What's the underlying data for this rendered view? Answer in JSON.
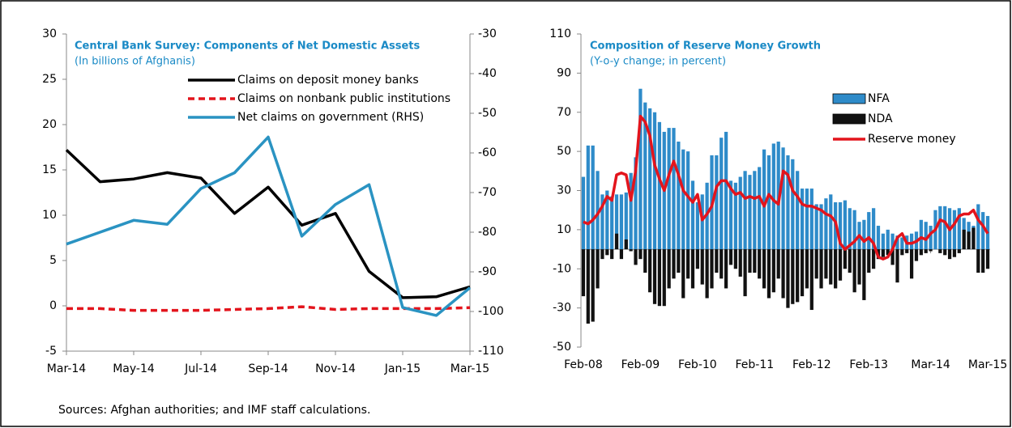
{
  "chart_data": [
    {
      "type": "line",
      "title": "Central Bank Survey: Components of Net Domestic Assets",
      "subtitle": "(In billions of Afghanis)",
      "categories": [
        "Mar-14",
        null,
        "May-14",
        null,
        "Jul-14",
        null,
        "Sep-14",
        null,
        "Nov-14",
        null,
        "Jan-15",
        null,
        "Mar-15"
      ],
      "series": [
        {
          "name": "Claims on deposit money banks",
          "color": "#000000",
          "style": "solid",
          "values": [
            17.2,
            13.7,
            14.0,
            14.7,
            14.1,
            10.2,
            13.1,
            8.9,
            10.2,
            3.8,
            0.9,
            1.0,
            2.1
          ]
        },
        {
          "name": "Claims on nonbank public institutions",
          "color": "#e3141c",
          "style": "dashed",
          "values": [
            -0.3,
            -0.3,
            -0.5,
            -0.5,
            -0.5,
            -0.4,
            -0.3,
            -0.1,
            -0.4,
            -0.3,
            -0.3,
            -0.3,
            -0.2
          ]
        },
        {
          "name": "Net claims on government (RHS)",
          "color": "#2a93c2",
          "style": "solid",
          "axis": "y2",
          "values": [
            -83,
            -80,
            -77,
            -78,
            -69,
            -65,
            -56,
            -81,
            -73,
            -68,
            -99,
            -101,
            -94
          ]
        }
      ],
      "ylim": [
        -5,
        30
      ],
      "yticks": [
        -5,
        0,
        5,
        10,
        15,
        20,
        25,
        30
      ],
      "y2lim": [
        -110,
        -30
      ],
      "y2ticks": [
        -110,
        -100,
        -90,
        -80,
        -70,
        -60,
        -50,
        -40,
        -30
      ],
      "legend": "top"
    },
    {
      "type": "bar",
      "title": "Composition of Reserve Money  Growth",
      "subtitle": "(Y-o-y  change; in percent)",
      "categories": [
        "Feb-08",
        null,
        null,
        null,
        null,
        null,
        null,
        null,
        null,
        null,
        null,
        null,
        "Feb-09",
        null,
        null,
        null,
        null,
        null,
        null,
        null,
        null,
        null,
        null,
        null,
        "Feb-10",
        null,
        null,
        null,
        null,
        null,
        null,
        null,
        null,
        null,
        null,
        null,
        "Feb-11",
        null,
        null,
        null,
        null,
        null,
        null,
        null,
        null,
        null,
        null,
        null,
        "Feb-12",
        null,
        null,
        null,
        null,
        null,
        null,
        null,
        null,
        null,
        null,
        null,
        "Feb-13",
        null,
        null,
        null,
        null,
        null,
        null,
        null,
        null,
        null,
        null,
        null,
        null,
        "Mar-14",
        null,
        null,
        null,
        null,
        null,
        null,
        null,
        null,
        null,
        null,
        null,
        "Mar-15"
      ],
      "series": [
        {
          "name": "NFA",
          "color": "#2e8bc9",
          "type": "bar",
          "values": [
            37,
            53,
            53,
            40,
            28,
            30,
            27,
            28,
            28,
            29,
            39,
            47,
            82,
            75,
            72,
            70,
            65,
            60,
            62,
            62,
            55,
            51,
            50,
            35,
            24,
            28,
            34,
            48,
            48,
            57,
            60,
            35,
            34,
            37,
            40,
            38,
            40,
            42,
            51,
            48,
            54,
            55,
            52,
            48,
            46,
            40,
            31,
            31,
            31,
            23,
            23,
            26,
            28,
            24,
            24,
            25,
            21,
            20,
            14,
            15,
            19,
            21,
            12,
            8,
            10,
            8,
            7,
            6,
            7,
            8,
            9,
            15,
            14,
            12,
            20,
            22,
            22,
            21,
            20,
            21,
            16,
            14,
            12,
            23,
            19,
            17
          ]
        },
        {
          "name": "NDA",
          "color": "#111111",
          "type": "bar",
          "values": [
            -24,
            -38,
            -37,
            -20,
            -5,
            -3,
            -5,
            8,
            -5,
            5,
            -1,
            -8,
            -5,
            -12,
            -22,
            -28,
            -29,
            -29,
            -20,
            -15,
            -12,
            -25,
            -15,
            -20,
            -10,
            -18,
            -25,
            -20,
            -12,
            -15,
            -20,
            -8,
            -10,
            -14,
            -24,
            -12,
            -12,
            -15,
            -20,
            -25,
            -22,
            -15,
            -25,
            -30,
            -28,
            -27,
            -24,
            -20,
            -31,
            -15,
            -20,
            -15,
            -18,
            -20,
            -16,
            -10,
            -12,
            -22,
            -18,
            -26,
            -12,
            -10,
            -5,
            -4,
            -3,
            -8,
            -17,
            -3,
            -2,
            -15,
            -6,
            -3,
            -2,
            -1,
            0,
            -2,
            -3,
            -5,
            -4,
            -2,
            10,
            9,
            11,
            -12,
            -12,
            -10
          ]
        },
        {
          "name": "Reserve money",
          "color": "#e3141c",
          "type": "line",
          "values": [
            14,
            13,
            15,
            18,
            22,
            27,
            25,
            38,
            39,
            38,
            25,
            40,
            68,
            65,
            58,
            43,
            36,
            30,
            38,
            45,
            38,
            30,
            27,
            24,
            28,
            15,
            18,
            22,
            32,
            35,
            35,
            31,
            28,
            29,
            26,
            27,
            26,
            27,
            22,
            28,
            25,
            23,
            40,
            38,
            30,
            27,
            23,
            22,
            22,
            21,
            20,
            18,
            17,
            14,
            3,
            0,
            2,
            4,
            7,
            4,
            6,
            3,
            -4,
            -5,
            -4,
            0,
            6,
            8,
            3,
            3,
            4,
            6,
            5,
            8,
            10,
            15,
            14,
            10,
            13,
            17,
            18,
            18,
            20,
            15,
            12,
            8
          ]
        }
      ],
      "ylim": [
        -50,
        110
      ],
      "yticks": [
        -50,
        -30,
        -10,
        10,
        30,
        50,
        70,
        90,
        110
      ],
      "legend": "top right"
    }
  ],
  "note": "Sources: Afghan authorities; and IMF staff calculations."
}
